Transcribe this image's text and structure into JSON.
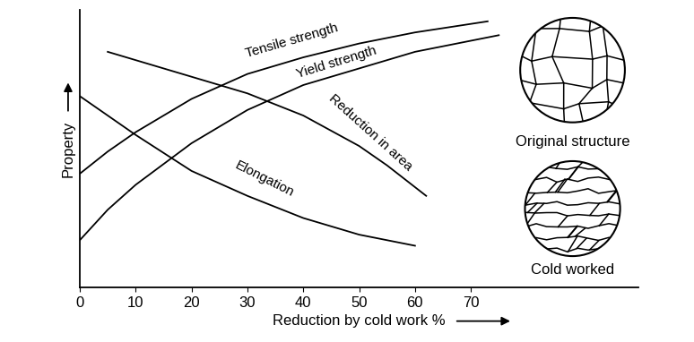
{
  "chart_data": {
    "type": "line",
    "x_label": "Reduction by cold work %",
    "y_label": "Property",
    "xlim": [
      0,
      100
    ],
    "xticks": [
      0,
      10,
      20,
      30,
      40,
      50,
      60,
      70
    ],
    "ylim": [
      0,
      100
    ],
    "yticks": [],
    "tick_labels": "x",
    "series": [
      {
        "name": "Tensile strength",
        "color": "#000000",
        "line_style": "solid",
        "x": [
          0,
          5,
          10,
          20,
          30,
          40,
          50,
          60,
          73
        ],
        "values": [
          41,
          49,
          56,
          68,
          77,
          83,
          88,
          92,
          96
        ]
      },
      {
        "name": "Yield strength",
        "color": "#000000",
        "line_style": "solid",
        "x": [
          0,
          5,
          10,
          20,
          30,
          40,
          50,
          60,
          75
        ],
        "values": [
          17,
          28,
          37,
          52,
          64,
          73,
          79,
          85,
          91
        ]
      },
      {
        "name": "Reduction in area",
        "color": "#000000",
        "line_style": "solid",
        "x": [
          5,
          10,
          20,
          30,
          40,
          50,
          55,
          62
        ],
        "values": [
          85,
          82,
          76,
          70,
          62,
          51,
          44,
          33
        ]
      },
      {
        "name": "Elongation",
        "color": "#000000",
        "line_style": "solid",
        "x": [
          0,
          5,
          10,
          20,
          30,
          40,
          50,
          60
        ],
        "values": [
          69,
          62,
          55,
          42,
          33,
          25,
          19,
          15
        ]
      }
    ],
    "annotations": [
      "Original structure",
      "Cold worked"
    ]
  }
}
